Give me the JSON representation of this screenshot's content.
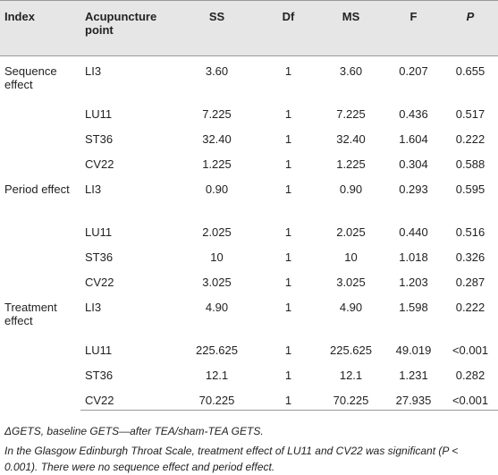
{
  "table": {
    "header": [
      "Index",
      "Acupuncture point",
      "SS",
      "Df",
      "MS",
      "F",
      "P"
    ],
    "groups": [
      {
        "index": "Sequence effect",
        "rows": [
          {
            "point": "LI3",
            "ss": "3.60",
            "df": "1",
            "ms": "3.60",
            "f": "0.207",
            "p": "0.655"
          },
          {
            "point": "LU11",
            "ss": "7.225",
            "df": "1",
            "ms": "7.225",
            "f": "0.436",
            "p": "0.517"
          },
          {
            "point": "ST36",
            "ss": "32.40",
            "df": "1",
            "ms": "32.40",
            "f": "1.604",
            "p": "0.222"
          },
          {
            "point": "CV22",
            "ss": "1.225",
            "df": "1",
            "ms": "1.225",
            "f": "0.304",
            "p": "0.588"
          }
        ]
      },
      {
        "index": "Period effect",
        "rows": [
          {
            "point": "LI3",
            "ss": "0.90",
            "df": "1",
            "ms": "0.90",
            "f": "0.293",
            "p": "0.595"
          },
          {
            "point": "LU11",
            "ss": "2.025",
            "df": "1",
            "ms": "2.025",
            "f": "0.440",
            "p": "0.516"
          },
          {
            "point": "ST36",
            "ss": "10",
            "df": "1",
            "ms": "10",
            "f": "1.018",
            "p": "0.326"
          },
          {
            "point": "CV22",
            "ss": "3.025",
            "df": "1",
            "ms": "3.025",
            "f": "1.203",
            "p": "0.287"
          }
        ]
      },
      {
        "index": "Treatment effect",
        "rows": [
          {
            "point": "LI3",
            "ss": "4.90",
            "df": "1",
            "ms": "4.90",
            "f": "1.598",
            "p": "0.222"
          },
          {
            "point": "LU11",
            "ss": "225.625",
            "df": "1",
            "ms": "225.625",
            "f": "49.019",
            "p": "<0.001"
          },
          {
            "point": "ST36",
            "ss": "12.1",
            "df": "1",
            "ms": "12.1",
            "f": "1.231",
            "p": "0.282"
          },
          {
            "point": "CV22",
            "ss": "70.225",
            "df": "1",
            "ms": "70.225",
            "f": "27.935",
            "p": "<0.001"
          }
        ]
      }
    ],
    "notes": [
      "ΔGETS, baseline GETS—after TEA/sham-TEA GETS.",
      "In the Glasgow Edinburgh Throat Scale, treatment effect of LU11 and CV22 was significant (P < 0.001). There were no sequence effect and period effect."
    ]
  }
}
